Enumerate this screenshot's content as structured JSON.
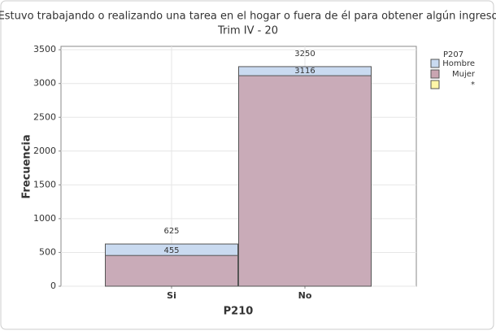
{
  "chart_data": {
    "type": "bar",
    "title": "¿Estuvo trabajando o realizando una tarea en el hogar o fuera de él para obtener algún ingreso?",
    "subtitle": "Trim IV - 20",
    "x_label": "P210",
    "y_label": "Frecuencia",
    "categories": [
      "Si",
      "No"
    ],
    "legend_title": "P207",
    "series": [
      {
        "name": "Hombre",
        "color": "#c9daf0",
        "values": [
          625,
          3250
        ]
      },
      {
        "name": "Mujer",
        "color": "#c9a5b1",
        "values": [
          455,
          3116
        ]
      },
      {
        "name": "*",
        "color": "#fff6a8",
        "values": [
          null,
          null
        ]
      }
    ],
    "ylim": [
      0,
      3550
    ],
    "yticks": [
      0,
      500,
      1000,
      1500,
      2000,
      2500,
      3000,
      3500
    ],
    "grid": true,
    "legend": "right"
  }
}
